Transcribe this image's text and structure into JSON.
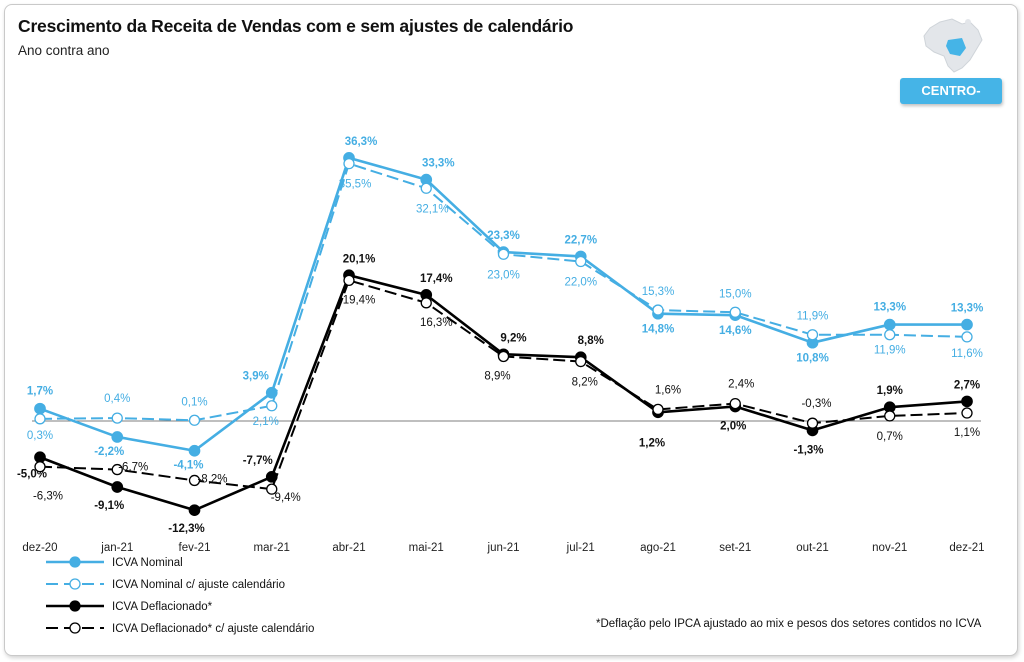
{
  "header": {
    "title": "Crescimento da Receita de Vendas com e sem ajustes de calendário",
    "subtitle": "Ano contra ano",
    "region_badge": "CENTRO-OESTE",
    "footnote": "*Deflação pelo IPCA ajustado ao mix e pesos dos setores contidos no ICVA"
  },
  "colors": {
    "nominal": "#45aee3",
    "deflated": "#000000",
    "badge": "#45b4e7"
  },
  "chart_data": {
    "type": "line",
    "title": "Crescimento da Receita de Vendas com e sem ajustes de calendário",
    "subtitle": "Ano contra ano",
    "categories": [
      "dez-20",
      "jan-21",
      "fev-21",
      "mar-21",
      "abr-21",
      "mai-21",
      "jun-21",
      "jul-21",
      "ago-21",
      "set-21",
      "out-21",
      "nov-21",
      "dez-21"
    ],
    "ylim": [
      -13,
      38
    ],
    "grid": false,
    "legend_position": "bottom-left",
    "series": [
      {
        "name": "ICVA Nominal",
        "color": "#45aee3",
        "style": "solid-filled",
        "values": [
          1.7,
          -2.2,
          -4.1,
          3.9,
          36.3,
          33.3,
          23.3,
          22.7,
          14.8,
          14.6,
          10.8,
          13.3,
          13.3
        ],
        "labels": [
          "1,7%",
          "-2,2%",
          "-4,1%",
          "3,9%",
          "36,3%",
          "33,3%",
          "23,3%",
          "22,7%",
          "14,8%",
          "14,6%",
          "10,8%",
          "13,3%",
          "13,3%"
        ]
      },
      {
        "name": "ICVA Nominal c/ ajuste calendário",
        "color": "#45aee3",
        "style": "dashed-open",
        "values": [
          0.3,
          0.4,
          0.1,
          2.1,
          35.5,
          32.1,
          23.0,
          22.0,
          15.3,
          15.0,
          11.9,
          11.9,
          11.6
        ],
        "labels": [
          "0,3%",
          "0,4%",
          "0,1%",
          "2,1%",
          "35,5%",
          "32,1%",
          "23,0%",
          "22,0%",
          "15,3%",
          "15,0%",
          "11,9%",
          "11,9%",
          "11,6%"
        ]
      },
      {
        "name": "ICVA Deflacionado*",
        "color": "#000000",
        "style": "solid-filled",
        "values": [
          -5.0,
          -9.1,
          -12.3,
          -7.7,
          20.1,
          17.4,
          9.2,
          8.8,
          1.2,
          2.0,
          -1.3,
          1.9,
          2.7
        ],
        "labels": [
          "-5,0%",
          "-9,1%",
          "-12,3%",
          "-7,7%",
          "20,1%",
          "17,4%",
          "9,2%",
          "8,8%",
          "1,2%",
          "2,0%",
          "-1,3%",
          "1,9%",
          "2,7%"
        ]
      },
      {
        "name": "ICVA Deflacionado* c/ ajuste calendário",
        "color": "#000000",
        "style": "dashed-open",
        "values": [
          -6.3,
          -6.7,
          -8.2,
          -9.4,
          19.4,
          16.3,
          8.9,
          8.2,
          1.6,
          2.4,
          -0.3,
          0.7,
          1.1
        ],
        "labels": [
          "-6,3%",
          "-6,7%",
          "-8,2%",
          "-9,4%",
          "19,4%",
          "16,3%",
          "8,9%",
          "8,2%",
          "1,6%",
          "2,4%",
          "-0,3%",
          "0,7%",
          "1,1%"
        ]
      }
    ]
  }
}
